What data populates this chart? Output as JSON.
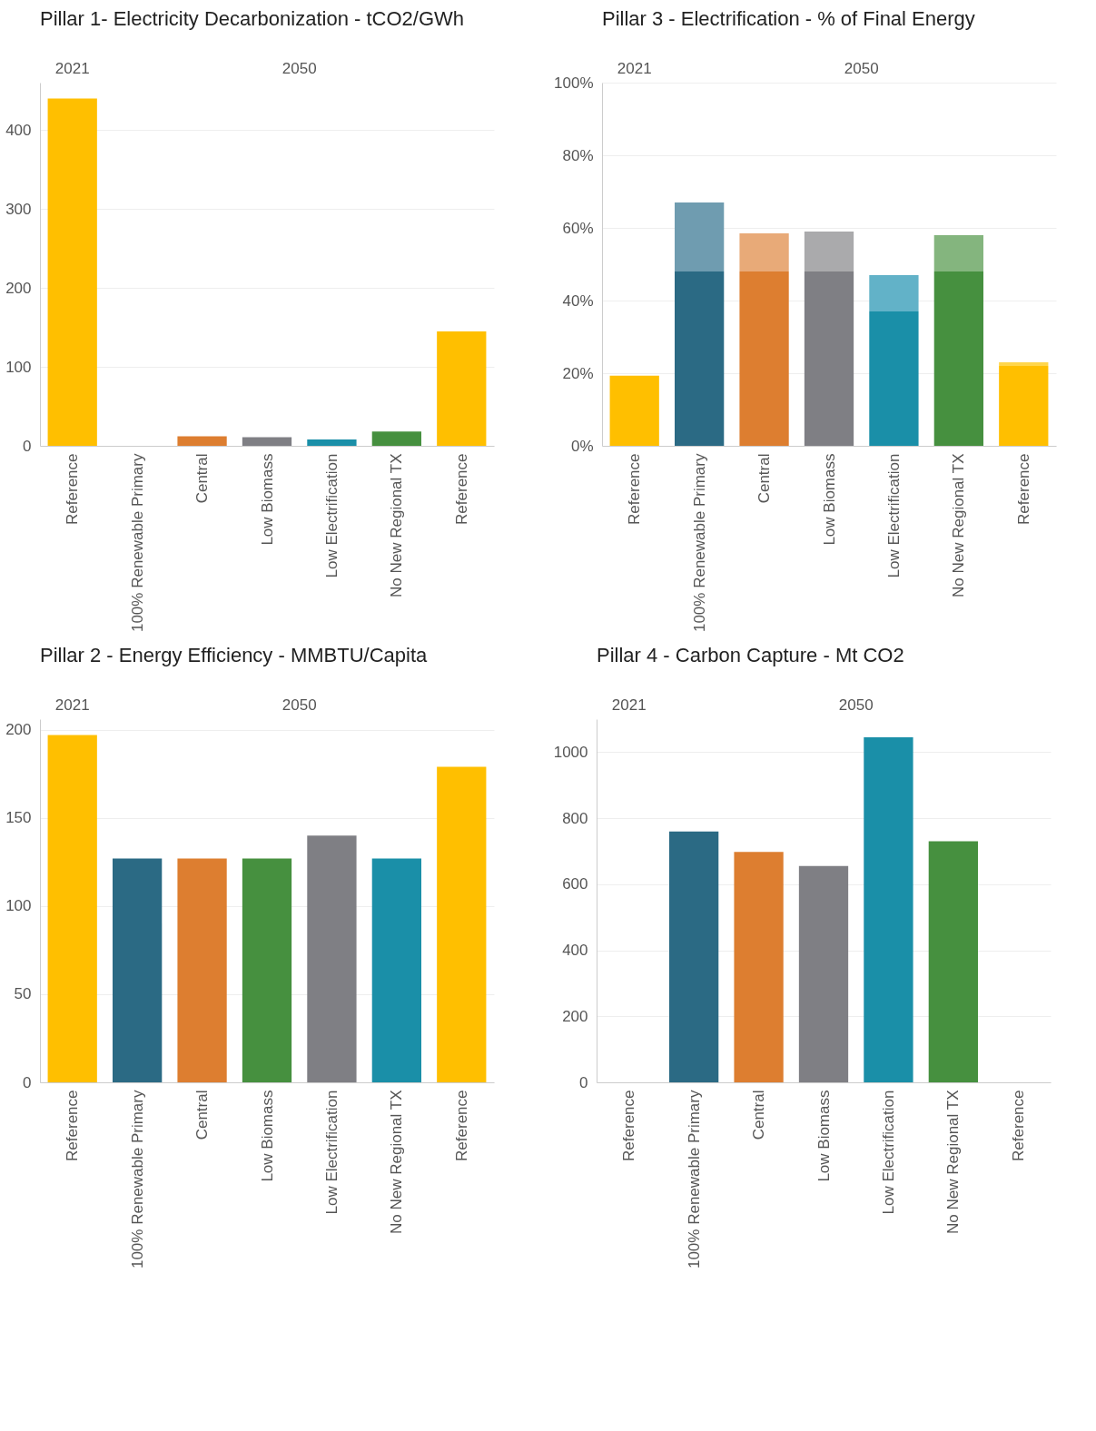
{
  "chart_data": [
    {
      "type": "bar",
      "title": "Pillar 1- Electricity Decarbonization - tCO2/GWh",
      "categories": [
        "Reference",
        "100% Renewable Primary",
        "Central",
        "Low Biomass",
        "Low Electrification",
        "No New Regional TX",
        "Reference"
      ],
      "series": [
        {
          "colors": [
            "#ffbf00",
            "#2b6a84",
            "#dd7e30",
            "#7f7f84",
            "#1a8fa8",
            "#46903f",
            "#ffbf00"
          ],
          "values": [
            440,
            0,
            12,
            11,
            8,
            18,
            145
          ]
        }
      ],
      "ylim": [
        0,
        460
      ],
      "yticks": [
        0,
        100,
        200,
        300,
        400
      ],
      "grid": "y",
      "annotations": [
        "2021",
        "2050"
      ]
    },
    {
      "type": "bar",
      "title": "Pillar 3 - Electrification - % of Final Energy",
      "categories": [
        "Reference",
        "100% Renewable Primary",
        "Central",
        "Low Biomass",
        "Low Electrification",
        "No New Regional TX",
        "Reference"
      ],
      "stacked": true,
      "series": [
        {
          "colors": [
            "#ffbf00",
            "#2b6a84",
            "#dd7e30",
            "#7f7f84",
            "#1a8fa8",
            "#46903f",
            "#ffbf00"
          ],
          "values": [
            19.3,
            48,
            48,
            48,
            37,
            48,
            22
          ]
        },
        {
          "colors": [
            null,
            "#6f9cb0",
            "#e8aa78",
            "#aaaaac",
            "#62b2c8",
            "#84b57e",
            "#ffd64d"
          ],
          "values": [
            null,
            19,
            10.5,
            11,
            10,
            10,
            1
          ]
        }
      ],
      "ylim": [
        0,
        100
      ],
      "yticks": [
        {
          "value": 0,
          "label": "0%"
        },
        {
          "value": 20,
          "label": "20%"
        },
        {
          "value": 40,
          "label": "40%"
        },
        {
          "value": 60,
          "label": "60%"
        },
        {
          "value": 80,
          "label": "80%"
        },
        {
          "value": 100,
          "label": "100%"
        }
      ],
      "grid": "y",
      "annotations": [
        "2021",
        "2050"
      ]
    },
    {
      "type": "bar",
      "title": "Pillar 2 - Energy Efficiency - MMBTU/Capita",
      "categories": [
        "Reference",
        "100% Renewable Primary",
        "Central",
        "Low Biomass",
        "Low Electrification",
        "No New Regional TX",
        "Reference"
      ],
      "series": [
        {
          "colors": [
            "#ffbf00",
            "#2b6a84",
            "#dd7e30",
            "#46903f",
            "#7f7f84",
            "#1a8fa8",
            "#ffbf00"
          ],
          "values": [
            197,
            127,
            127,
            127,
            140,
            127,
            179
          ]
        }
      ],
      "ylim": [
        0,
        206
      ],
      "yticks": [
        0,
        50,
        100,
        150,
        200
      ],
      "grid": "y",
      "annotations": [
        "2021",
        "2050"
      ]
    },
    {
      "type": "bar",
      "title": "Pillar 4 - Carbon Capture - Mt CO2",
      "categories": [
        "Reference",
        "100% Renewable Primary",
        "Central",
        "Low Biomass",
        "Low Electrification",
        "No New Regional TX",
        "Reference"
      ],
      "series": [
        {
          "colors": [
            null,
            "#2b6a84",
            "#dd7e30",
            "#7f7f84",
            "#1a8fa8",
            "#46903f",
            null
          ],
          "values": [
            null,
            760,
            698,
            655,
            1045,
            730,
            null
          ]
        }
      ],
      "ylim": [
        0,
        1100
      ],
      "yticks": [
        0,
        200,
        400,
        600,
        800,
        1000
      ],
      "grid": "y",
      "annotations": [
        "2021",
        "2050"
      ]
    }
  ]
}
